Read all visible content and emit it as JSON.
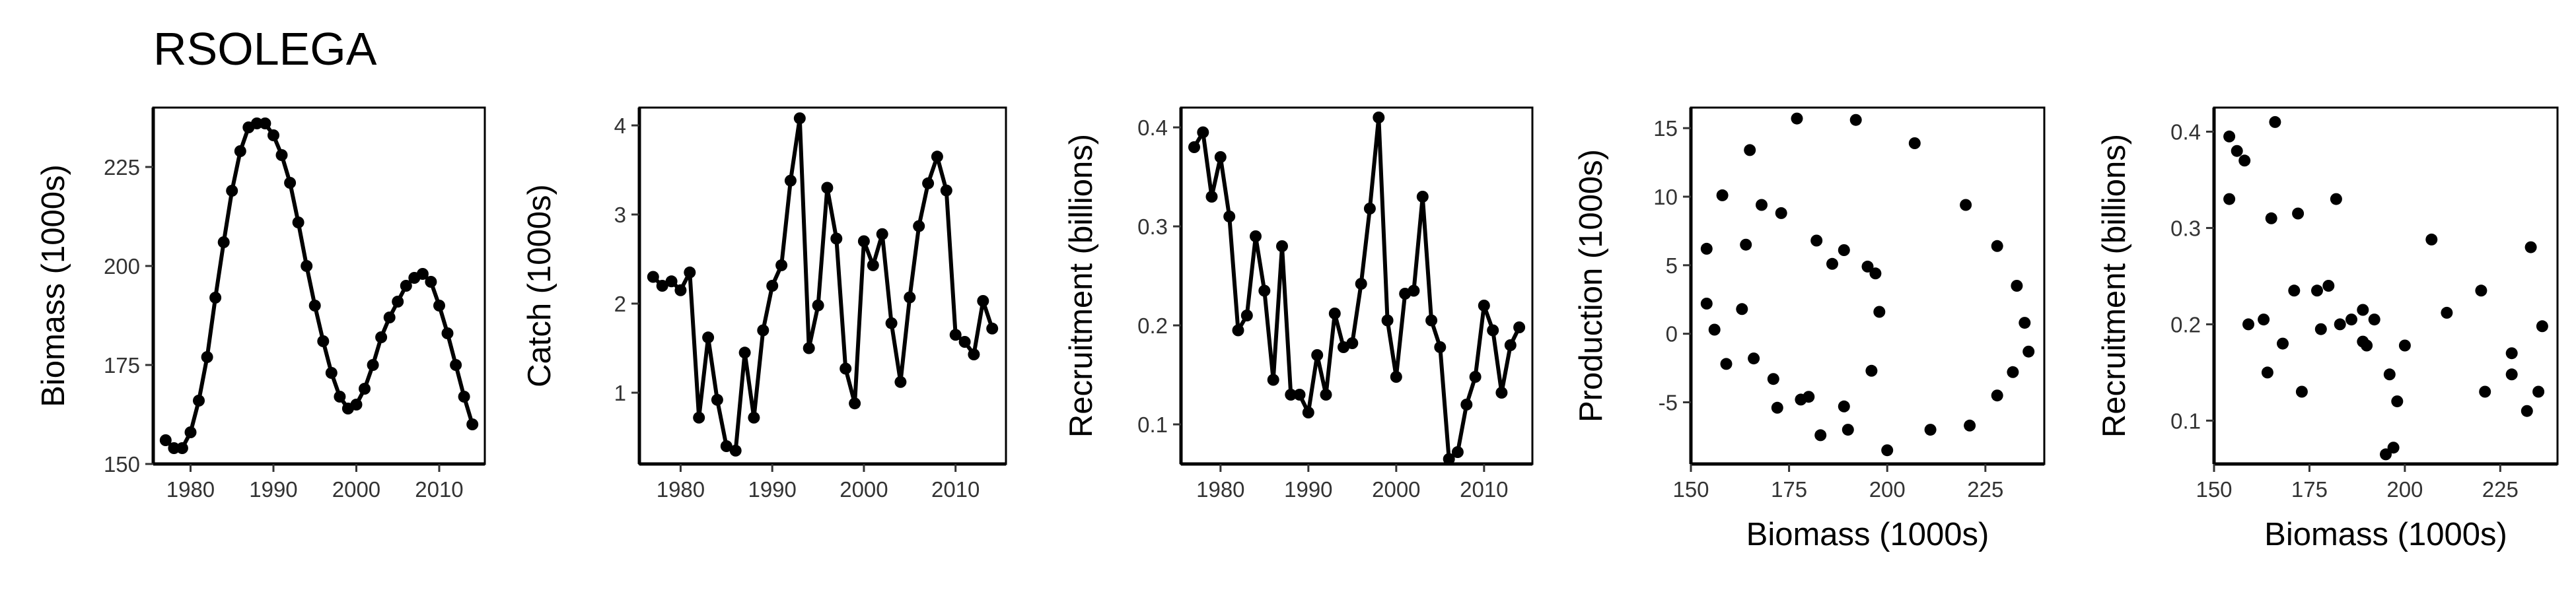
{
  "figure": {
    "title": "RSOLEGA"
  },
  "chart_data": [
    {
      "type": "line",
      "title": "",
      "xlabel": "",
      "ylabel": "Biomass (1000s)",
      "xlim": [
        1975.5,
        2015.5
      ],
      "ylim": [
        150,
        240
      ],
      "xticks": [
        1980,
        1990,
        2000,
        2010
      ],
      "yticks": [
        150,
        175,
        200,
        225
      ],
      "x": [
        1977,
        1978,
        1979,
        1980,
        1981,
        1982,
        1983,
        1984,
        1985,
        1986,
        1987,
        1988,
        1989,
        1990,
        1991,
        1992,
        1993,
        1994,
        1995,
        1996,
        1997,
        1998,
        1999,
        2000,
        2001,
        2002,
        2003,
        2004,
        2005,
        2006,
        2007,
        2008,
        2009,
        2010,
        2011,
        2012,
        2013,
        2014
      ],
      "y": [
        156,
        154,
        154,
        158,
        166,
        177,
        192,
        206,
        219,
        229,
        235,
        236,
        236,
        233,
        228,
        221,
        211,
        200,
        190,
        181,
        173,
        167,
        164,
        165,
        169,
        175,
        182,
        187,
        191,
        195,
        197,
        198,
        196,
        190,
        183,
        175,
        167,
        160
      ]
    },
    {
      "type": "line",
      "title": "",
      "xlabel": "",
      "ylabel": "Catch (1000s)",
      "xlim": [
        1975.5,
        2015.5
      ],
      "ylim": [
        0.2,
        4.2
      ],
      "xticks": [
        1980,
        1990,
        2000,
        2010
      ],
      "yticks": [
        1,
        2,
        3,
        4
      ],
      "x": [
        1977,
        1978,
        1979,
        1980,
        1981,
        1982,
        1983,
        1984,
        1985,
        1986,
        1987,
        1988,
        1989,
        1990,
        1991,
        1992,
        1993,
        1994,
        1995,
        1996,
        1997,
        1998,
        1999,
        2000,
        2001,
        2002,
        2003,
        2004,
        2005,
        2006,
        2007,
        2008,
        2009,
        2010,
        2011,
        2012,
        2013,
        2014
      ],
      "y": [
        2.3,
        2.2,
        2.25,
        2.15,
        2.35,
        0.72,
        1.62,
        0.92,
        0.4,
        0.35,
        1.45,
        0.72,
        1.7,
        2.2,
        2.43,
        3.38,
        4.08,
        1.5,
        1.98,
        3.3,
        2.73,
        1.27,
        0.88,
        2.7,
        2.43,
        2.78,
        1.78,
        1.12,
        2.07,
        2.87,
        3.35,
        3.65,
        3.27,
        1.65,
        1.57,
        1.43,
        2.03,
        1.72
      ]
    },
    {
      "type": "line",
      "title": "",
      "xlabel": "",
      "ylabel": "Recruitment (billions)",
      "xlim": [
        1975.5,
        2015.5
      ],
      "ylim": [
        0.06,
        0.42
      ],
      "xticks": [
        1980,
        1990,
        2000,
        2010
      ],
      "yticks": [
        0.1,
        0.2,
        0.3,
        0.4
      ],
      "x": [
        1977,
        1978,
        1979,
        1980,
        1981,
        1982,
        1983,
        1984,
        1985,
        1986,
        1987,
        1988,
        1989,
        1990,
        1991,
        1992,
        1993,
        1994,
        1995,
        1996,
        1997,
        1998,
        1999,
        2000,
        2001,
        2002,
        2003,
        2004,
        2005,
        2006,
        2007,
        2008,
        2009,
        2010,
        2011,
        2012,
        2013,
        2014
      ],
      "y": [
        0.38,
        0.395,
        0.33,
        0.37,
        0.31,
        0.195,
        0.21,
        0.29,
        0.235,
        0.145,
        0.28,
        0.13,
        0.13,
        0.112,
        0.17,
        0.13,
        0.212,
        0.178,
        0.182,
        0.242,
        0.318,
        0.41,
        0.205,
        0.148,
        0.232,
        0.235,
        0.33,
        0.205,
        0.178,
        0.065,
        0.072,
        0.12,
        0.148,
        0.22,
        0.195,
        0.132,
        0.18,
        0.198
      ]
    },
    {
      "type": "scatter",
      "title": "",
      "xlabel": "Biomass (1000s)",
      "ylabel": "Production (1000s)",
      "xlim": [
        150,
        240
      ],
      "ylim": [
        -9.5,
        16.5
      ],
      "xticks": [
        150,
        175,
        200,
        225
      ],
      "yticks": [
        -5,
        0,
        5,
        10,
        15
      ],
      "x": [
        154,
        154,
        156,
        158,
        159,
        163,
        164,
        165,
        166,
        168,
        171,
        172,
        173,
        177,
        178,
        180,
        182,
        183,
        186,
        189,
        189,
        190,
        192,
        195,
        196,
        197,
        198,
        200,
        207,
        211,
        220,
        221,
        228,
        228,
        232,
        233,
        235,
        236
      ],
      "y": [
        6.2,
        2.2,
        0.3,
        10.1,
        -2.2,
        1.8,
        6.5,
        13.4,
        -1.8,
        9.4,
        -3.3,
        -5.4,
        8.8,
        15.7,
        -4.8,
        -4.6,
        6.8,
        -7.4,
        5.1,
        -5.3,
        6.1,
        -7.0,
        15.6,
        4.9,
        -2.7,
        4.4,
        1.6,
        -8.5,
        13.9,
        -7.0,
        9.4,
        -6.7,
        6.4,
        -4.5,
        -2.8,
        3.5,
        0.8,
        -1.3
      ]
    },
    {
      "type": "scatter",
      "title": "",
      "xlabel": "Biomass (1000s)",
      "ylabel": "Recruitment (billions)",
      "xlim": [
        150,
        240
      ],
      "ylim": [
        0.055,
        0.425
      ],
      "xticks": [
        150,
        175,
        200,
        225
      ],
      "yticks": [
        0.1,
        0.2,
        0.3,
        0.4
      ],
      "x": [
        154,
        154,
        156,
        158,
        159,
        163,
        164,
        165,
        166,
        168,
        171,
        172,
        173,
        177,
        178,
        180,
        182,
        183,
        186,
        189,
        189,
        190,
        192,
        195,
        196,
        197,
        198,
        200,
        207,
        211,
        220,
        221,
        228,
        228,
        232,
        233,
        235,
        236
      ],
      "y": [
        0.395,
        0.33,
        0.38,
        0.37,
        0.2,
        0.205,
        0.15,
        0.31,
        0.41,
        0.18,
        0.235,
        0.315,
        0.13,
        0.235,
        0.195,
        0.24,
        0.33,
        0.2,
        0.205,
        0.215,
        0.182,
        0.178,
        0.205,
        0.065,
        0.148,
        0.072,
        0.12,
        0.178,
        0.288,
        0.212,
        0.235,
        0.13,
        0.148,
        0.17,
        0.11,
        0.28,
        0.13,
        0.198
      ]
    }
  ]
}
